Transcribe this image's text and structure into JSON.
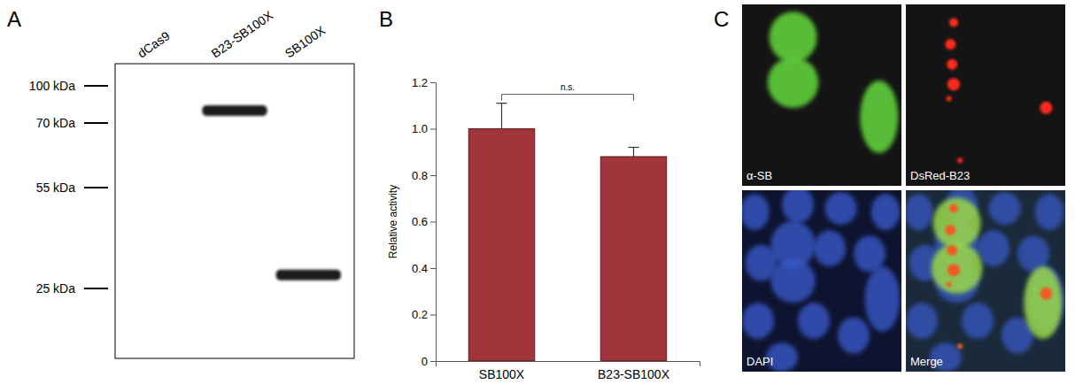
{
  "panel_labels": [
    "A",
    "B",
    "C"
  ],
  "blot": {
    "markers": [
      {
        "value": 100,
        "label": "100 kDa"
      },
      {
        "value": 70,
        "label": "70 kDa"
      },
      {
        "value": 55,
        "label": "55 kDa"
      },
      {
        "value": 25,
        "label": "25 kDa"
      }
    ],
    "lanes": [
      {
        "label": "dCas9",
        "band_kda": null
      },
      {
        "label": "B23-SB100X",
        "band_kda": 80
      },
      {
        "label": "SB100X",
        "band_kda": 29
      }
    ]
  },
  "chart_data": {
    "type": "bar",
    "categories": [
      "SB100X",
      "B23-SB100X"
    ],
    "values": [
      1.0,
      0.88
    ],
    "errors": [
      0.11,
      0.04
    ],
    "color": "#a0353c",
    "y_label": "Relative activity",
    "ylim": [
      0,
      1.2
    ],
    "yticks": [
      0,
      0.2,
      0.4,
      0.6,
      0.8,
      {
        "value": 1,
        "label": "1.0"
      },
      1.2
    ],
    "annotations": [
      {
        "text": "n.s."
      }
    ]
  },
  "micrographs": {
    "panels": [
      {
        "label": "α-SB"
      },
      {
        "label": "DsRed-B23"
      },
      {
        "label": "DAPI"
      },
      {
        "label": "Merge"
      }
    ]
  }
}
